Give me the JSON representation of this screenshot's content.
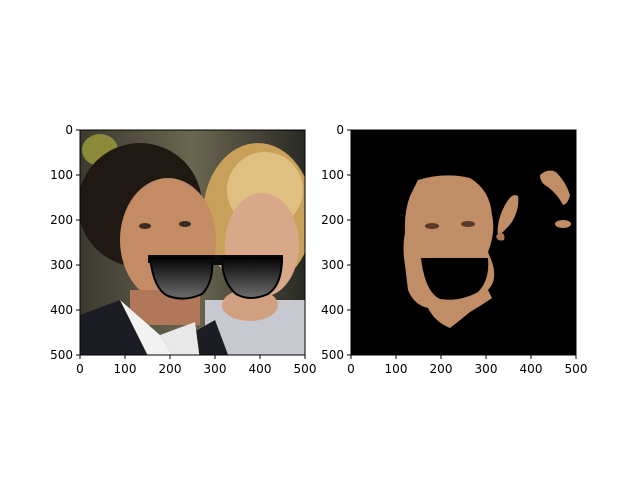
{
  "chart_data": [
    {
      "type": "image",
      "title": "",
      "xlabel": "",
      "ylabel": "",
      "xlim": [
        0,
        500
      ],
      "ylim": [
        500,
        0
      ],
      "xticks": [
        "0",
        "100",
        "200",
        "300",
        "400",
        "500"
      ],
      "yticks": [
        "0",
        "100",
        "200",
        "300",
        "400",
        "500"
      ],
      "content": "photo of two smiling people with sunglasses overlay"
    },
    {
      "type": "image",
      "title": "",
      "xlabel": "",
      "ylabel": "",
      "xlim": [
        0,
        500
      ],
      "ylim": [
        500,
        0
      ],
      "xticks": [
        "0",
        "100",
        "200",
        "300",
        "400",
        "500"
      ],
      "yticks": [
        "0",
        "100",
        "200",
        "300",
        "400",
        "500"
      ],
      "content": "skin segmentation mask on black background"
    }
  ],
  "colors": {
    "skin": "#c08d67",
    "mask_bg": "#000000",
    "lens": "#1a1a1a"
  }
}
